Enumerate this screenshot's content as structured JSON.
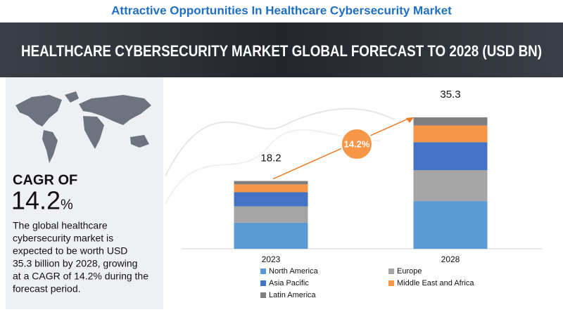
{
  "header": "Attractive Opportunities In Healthcare Cybersecurity Market",
  "banner": "HEALTHCARE CYBERSECURITY MARKET GLOBAL FORECAST TO 2028 (USD BN)",
  "cagr_heading": "CAGR OF",
  "cagr_value": "14.2",
  "cagr_unit": "%",
  "description": [
    "The global healthcare",
    "cybersecurity market is",
    "expected to be worth USD",
    "35.3 billion by 2028, growing",
    "at a CAGR of 14.2% during the",
    "forecast period."
  ],
  "chart_data": {
    "type": "stacked_bar",
    "categories": [
      "2023",
      "2028"
    ],
    "series": [
      {
        "name": "North America",
        "color": "#5b9bd5",
        "values": [
          7.0,
          12.8
        ]
      },
      {
        "name": "Europe",
        "color": "#a5a5a5",
        "values": [
          4.4,
          8.3
        ]
      },
      {
        "name": "Asia Pacific",
        "color": "#4472c4",
        "values": [
          3.8,
          7.5
        ]
      },
      {
        "name": "Middle East and Africa",
        "color": "#f79646",
        "values": [
          2.1,
          4.5
        ]
      },
      {
        "name": "Latin America",
        "color": "#7f7f7f",
        "values": [
          0.9,
          2.2
        ]
      }
    ],
    "totals": [
      18.2,
      35.3
    ],
    "annotation": "14.2%",
    "ylim": [
      0,
      40
    ],
    "grid": false
  }
}
